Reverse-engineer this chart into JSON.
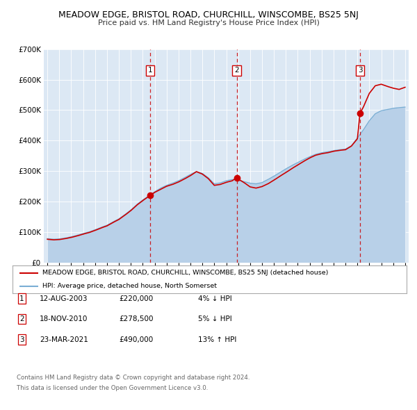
{
  "title": "MEADOW EDGE, BRISTOL ROAD, CHURCHILL, WINSCOMBE, BS25 5NJ",
  "subtitle": "Price paid vs. HM Land Registry's House Price Index (HPI)",
  "hpi_color": "#b8d0e8",
  "hpi_line_color": "#7aaed4",
  "price_color": "#cc0000",
  "background_color": "#dce8f4",
  "sale_dates": [
    2003.62,
    2010.88,
    2021.22
  ],
  "sale_prices": [
    220000,
    278500,
    490000
  ],
  "sale_labels": [
    "1",
    "2",
    "3"
  ],
  "sale_date_strs": [
    "12-AUG-2003",
    "18-NOV-2010",
    "23-MAR-2021"
  ],
  "sale_price_strs": [
    "£220,000",
    "£278,500",
    "£490,000"
  ],
  "sale_hpi_strs": [
    "4% ↓ HPI",
    "5% ↓ HPI",
    "13% ↑ HPI"
  ],
  "legend_line1": "MEADOW EDGE, BRISTOL ROAD, CHURCHILL, WINSCOMBE, BS25 5NJ (detached house)",
  "legend_line2": "HPI: Average price, detached house, North Somerset",
  "footer1": "Contains HM Land Registry data © Crown copyright and database right 2024.",
  "footer2": "This data is licensed under the Open Government Licence v3.0.",
  "ylim": [
    0,
    700000
  ],
  "xlim_start": 1994.7,
  "xlim_end": 2025.3,
  "hpi_knots": [
    [
      1995.0,
      78000
    ],
    [
      1995.5,
      76000
    ],
    [
      1996.0,
      77000
    ],
    [
      1996.5,
      80000
    ],
    [
      1997.0,
      84000
    ],
    [
      1997.5,
      89000
    ],
    [
      1998.0,
      95000
    ],
    [
      1998.5,
      100000
    ],
    [
      1999.0,
      107000
    ],
    [
      1999.5,
      115000
    ],
    [
      2000.0,
      122000
    ],
    [
      2000.5,
      133000
    ],
    [
      2001.0,
      143000
    ],
    [
      2001.5,
      157000
    ],
    [
      2002.0,
      172000
    ],
    [
      2002.5,
      190000
    ],
    [
      2003.0,
      205000
    ],
    [
      2003.5,
      218000
    ],
    [
      2004.0,
      232000
    ],
    [
      2004.5,
      244000
    ],
    [
      2005.0,
      253000
    ],
    [
      2005.5,
      260000
    ],
    [
      2006.0,
      268000
    ],
    [
      2006.5,
      278000
    ],
    [
      2007.0,
      289000
    ],
    [
      2007.5,
      298000
    ],
    [
      2008.0,
      292000
    ],
    [
      2008.5,
      278000
    ],
    [
      2009.0,
      258000
    ],
    [
      2009.5,
      261000
    ],
    [
      2010.0,
      268000
    ],
    [
      2010.5,
      272000
    ],
    [
      2011.0,
      270000
    ],
    [
      2011.5,
      265000
    ],
    [
      2012.0,
      260000
    ],
    [
      2012.5,
      258000
    ],
    [
      2013.0,
      262000
    ],
    [
      2013.5,
      272000
    ],
    [
      2014.0,
      283000
    ],
    [
      2014.5,
      295000
    ],
    [
      2015.0,
      307000
    ],
    [
      2015.5,
      318000
    ],
    [
      2016.0,
      328000
    ],
    [
      2016.5,
      338000
    ],
    [
      2017.0,
      347000
    ],
    [
      2017.5,
      355000
    ],
    [
      2018.0,
      360000
    ],
    [
      2018.5,
      363000
    ],
    [
      2019.0,
      367000
    ],
    [
      2019.5,
      370000
    ],
    [
      2020.0,
      372000
    ],
    [
      2020.5,
      383000
    ],
    [
      2021.0,
      408000
    ],
    [
      2021.5,
      435000
    ],
    [
      2022.0,
      465000
    ],
    [
      2022.5,
      488000
    ],
    [
      2023.0,
      498000
    ],
    [
      2023.5,
      502000
    ],
    [
      2024.0,
      506000
    ],
    [
      2024.5,
      508000
    ],
    [
      2025.0,
      510000
    ]
  ],
  "price_knots": [
    [
      1995.0,
      76000
    ],
    [
      1995.5,
      74000
    ],
    [
      1996.0,
      75000
    ],
    [
      1996.5,
      78000
    ],
    [
      1997.0,
      82000
    ],
    [
      1997.5,
      87000
    ],
    [
      1998.0,
      93000
    ],
    [
      1998.5,
      98000
    ],
    [
      1999.0,
      105000
    ],
    [
      1999.5,
      113000
    ],
    [
      2000.0,
      120000
    ],
    [
      2000.5,
      131000
    ],
    [
      2001.0,
      141000
    ],
    [
      2001.5,
      155000
    ],
    [
      2002.0,
      170000
    ],
    [
      2002.5,
      188000
    ],
    [
      2003.0,
      203000
    ],
    [
      2003.62,
      220000
    ],
    [
      2004.0,
      230000
    ],
    [
      2004.5,
      240000
    ],
    [
      2005.0,
      250000
    ],
    [
      2005.5,
      256000
    ],
    [
      2006.0,
      264000
    ],
    [
      2006.5,
      274000
    ],
    [
      2007.0,
      285000
    ],
    [
      2007.5,
      298000
    ],
    [
      2008.0,
      290000
    ],
    [
      2008.5,
      275000
    ],
    [
      2009.0,
      253000
    ],
    [
      2009.5,
      256000
    ],
    [
      2010.0,
      263000
    ],
    [
      2010.5,
      268000
    ],
    [
      2010.88,
      278500
    ],
    [
      2011.0,
      274000
    ],
    [
      2011.5,
      262000
    ],
    [
      2012.0,
      248000
    ],
    [
      2012.5,
      244000
    ],
    [
      2013.0,
      249000
    ],
    [
      2013.5,
      258000
    ],
    [
      2014.0,
      270000
    ],
    [
      2014.5,
      283000
    ],
    [
      2015.0,
      295000
    ],
    [
      2015.5,
      308000
    ],
    [
      2016.0,
      320000
    ],
    [
      2016.5,
      332000
    ],
    [
      2017.0,
      343000
    ],
    [
      2017.5,
      352000
    ],
    [
      2018.0,
      357000
    ],
    [
      2018.5,
      360000
    ],
    [
      2019.0,
      365000
    ],
    [
      2019.5,
      368000
    ],
    [
      2020.0,
      370000
    ],
    [
      2020.5,
      382000
    ],
    [
      2021.0,
      406000
    ],
    [
      2021.22,
      490000
    ],
    [
      2021.5,
      510000
    ],
    [
      2022.0,
      555000
    ],
    [
      2022.5,
      580000
    ],
    [
      2023.0,
      585000
    ],
    [
      2023.5,
      578000
    ],
    [
      2024.0,
      572000
    ],
    [
      2024.5,
      568000
    ],
    [
      2025.0,
      575000
    ]
  ]
}
